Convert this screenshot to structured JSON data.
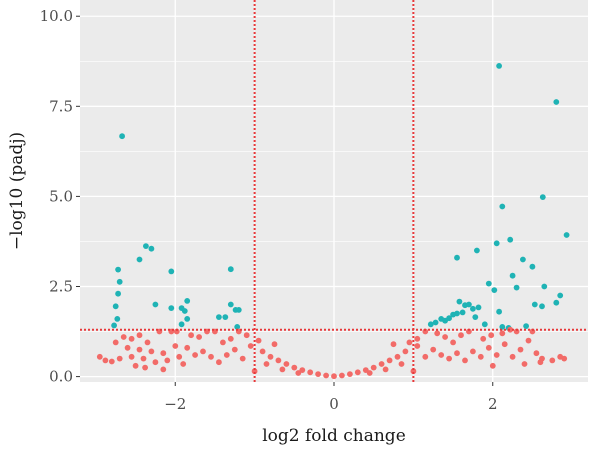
{
  "chart_data": {
    "type": "scatter",
    "title": "",
    "xlabel": "log2 fold change",
    "ylabel": "−log10 (padj)",
    "xlim": [
      -3.2,
      3.2
    ],
    "ylim": [
      -0.15,
      10.45
    ],
    "x_ticks": [
      -2,
      0,
      2
    ],
    "x_tick_labels": [
      "−2",
      "0",
      "2"
    ],
    "y_ticks": [
      0,
      2.5,
      5,
      7.5,
      10
    ],
    "y_tick_labels": [
      "0.0",
      "2.5",
      "5.0",
      "7.5",
      "10.0"
    ],
    "grid": true,
    "legend": "none",
    "background_color": "#ebebeb",
    "grid_color": "#ffffff",
    "threshold_color": "#e8383a",
    "thresholds": {
      "vlines": [
        -1,
        1
      ],
      "hline": 1.3
    },
    "series": [
      {
        "color": "#1fb3b5",
        "points": [
          [
            -2.67,
            6.67
          ],
          [
            -2.37,
            3.62
          ],
          [
            -2.3,
            3.55
          ],
          [
            -2.45,
            3.25
          ],
          [
            -2.72,
            2.97
          ],
          [
            -2.05,
            2.92
          ],
          [
            -1.3,
            2.98
          ],
          [
            -2.7,
            2.63
          ],
          [
            -2.72,
            2.3
          ],
          [
            -1.85,
            2.1
          ],
          [
            -1.3,
            2.0
          ],
          [
            -2.25,
            2.0
          ],
          [
            -2.05,
            1.9
          ],
          [
            -1.92,
            1.9
          ],
          [
            -1.24,
            1.85
          ],
          [
            -1.2,
            1.85
          ],
          [
            -1.88,
            1.82
          ],
          [
            -2.75,
            1.95
          ],
          [
            -2.73,
            1.6
          ],
          [
            -2.77,
            1.42
          ],
          [
            -1.45,
            1.65
          ],
          [
            -1.37,
            1.65
          ],
          [
            -1.85,
            1.6
          ],
          [
            -1.92,
            1.45
          ],
          [
            -1.22,
            1.38
          ],
          [
            2.08,
            8.62
          ],
          [
            2.8,
            7.62
          ],
          [
            2.63,
            4.98
          ],
          [
            2.12,
            4.72
          ],
          [
            2.93,
            3.93
          ],
          [
            2.22,
            3.8
          ],
          [
            2.05,
            3.7
          ],
          [
            1.8,
            3.5
          ],
          [
            1.55,
            3.3
          ],
          [
            2.38,
            3.25
          ],
          [
            2.5,
            3.05
          ],
          [
            2.25,
            2.8
          ],
          [
            1.95,
            2.58
          ],
          [
            2.65,
            2.5
          ],
          [
            2.3,
            2.47
          ],
          [
            2.02,
            2.4
          ],
          [
            2.85,
            2.25
          ],
          [
            2.8,
            2.05
          ],
          [
            2.53,
            2.0
          ],
          [
            1.65,
            1.98
          ],
          [
            1.58,
            2.08
          ],
          [
            1.7,
            2.0
          ],
          [
            2.62,
            1.95
          ],
          [
            1.82,
            1.92
          ],
          [
            1.75,
            1.88
          ],
          [
            2.08,
            1.8
          ],
          [
            1.62,
            1.78
          ],
          [
            1.55,
            1.75
          ],
          [
            1.5,
            1.72
          ],
          [
            1.78,
            1.65
          ],
          [
            1.45,
            1.62
          ],
          [
            1.35,
            1.6
          ],
          [
            1.4,
            1.55
          ],
          [
            1.28,
            1.5
          ],
          [
            1.22,
            1.45
          ],
          [
            1.9,
            1.45
          ],
          [
            2.12,
            1.38
          ],
          [
            2.2,
            1.35
          ],
          [
            2.42,
            1.4
          ]
        ]
      },
      {
        "color": "#f26b68",
        "points": [
          [
            -2.95,
            0.55
          ],
          [
            -2.88,
            0.45
          ],
          [
            -2.8,
            0.42
          ],
          [
            -2.7,
            0.5
          ],
          [
            -2.6,
            0.8
          ],
          [
            -2.55,
            0.55
          ],
          [
            -2.45,
            0.75
          ],
          [
            -2.4,
            0.5
          ],
          [
            -2.3,
            0.7
          ],
          [
            -2.25,
            0.4
          ],
          [
            -2.15,
            0.65
          ],
          [
            -2.1,
            0.45
          ],
          [
            -2.0,
            0.85
          ],
          [
            -1.95,
            0.55
          ],
          [
            -1.9,
            0.35
          ],
          [
            -2.65,
            1.1
          ],
          [
            -2.55,
            1.05
          ],
          [
            -2.45,
            1.15
          ],
          [
            -2.35,
            0.95
          ],
          [
            -2.2,
            1.25
          ],
          [
            -2.05,
            1.25
          ],
          [
            -1.98,
            1.25
          ],
          [
            -1.8,
            1.15
          ],
          [
            -1.7,
            1.1
          ],
          [
            -1.6,
            1.25
          ],
          [
            -1.5,
            1.25
          ],
          [
            -1.4,
            0.95
          ],
          [
            -1.3,
            1.05
          ],
          [
            -1.2,
            1.25
          ],
          [
            -1.1,
            1.15
          ],
          [
            -2.75,
            0.95
          ],
          [
            -2.5,
            0.3
          ],
          [
            -2.38,
            0.25
          ],
          [
            -2.15,
            0.2
          ],
          [
            -1.85,
            0.8
          ],
          [
            -1.75,
            0.6
          ],
          [
            -1.65,
            0.7
          ],
          [
            -1.55,
            0.55
          ],
          [
            -1.45,
            0.4
          ],
          [
            -1.35,
            0.6
          ],
          [
            -1.25,
            0.75
          ],
          [
            -1.15,
            0.5
          ],
          [
            -1.05,
            0.85
          ],
          [
            -0.95,
            1.0
          ],
          [
            -0.9,
            0.7
          ],
          [
            -0.8,
            0.55
          ],
          [
            -0.7,
            0.45
          ],
          [
            -0.6,
            0.35
          ],
          [
            -0.5,
            0.25
          ],
          [
            -0.4,
            0.18
          ],
          [
            -0.3,
            0.12
          ],
          [
            -0.2,
            0.07
          ],
          [
            -0.1,
            0.03
          ],
          [
            0.0,
            0.01
          ],
          [
            0.1,
            0.03
          ],
          [
            0.2,
            0.07
          ],
          [
            0.3,
            0.12
          ],
          [
            0.4,
            0.18
          ],
          [
            0.5,
            0.25
          ],
          [
            0.6,
            0.35
          ],
          [
            0.7,
            0.45
          ],
          [
            0.8,
            0.55
          ],
          [
            0.9,
            0.7
          ],
          [
            0.95,
            0.95
          ],
          [
            1.05,
            0.85
          ],
          [
            1.15,
            0.55
          ],
          [
            1.25,
            0.75
          ],
          [
            1.35,
            0.6
          ],
          [
            1.45,
            0.5
          ],
          [
            1.55,
            0.65
          ],
          [
            1.65,
            0.45
          ],
          [
            1.75,
            0.7
          ],
          [
            1.85,
            0.55
          ],
          [
            1.95,
            0.8
          ],
          [
            2.05,
            0.6
          ],
          [
            2.15,
            0.9
          ],
          [
            2.25,
            0.55
          ],
          [
            2.35,
            0.75
          ],
          [
            2.45,
            1.0
          ],
          [
            2.55,
            0.65
          ],
          [
            2.62,
            0.5
          ],
          [
            2.75,
            0.45
          ],
          [
            2.85,
            0.55
          ],
          [
            2.9,
            0.5
          ],
          [
            2.22,
            1.3
          ],
          [
            2.3,
            1.25
          ],
          [
            2.12,
            1.2
          ],
          [
            1.98,
            1.15
          ],
          [
            1.88,
            1.05
          ],
          [
            1.7,
            1.25
          ],
          [
            1.6,
            1.15
          ],
          [
            1.5,
            0.95
          ],
          [
            1.4,
            1.1
          ],
          [
            1.3,
            1.2
          ],
          [
            1.15,
            1.25
          ],
          [
            1.05,
            1.05
          ],
          [
            2.5,
            1.25
          ],
          [
            2.4,
            0.35
          ],
          [
            2.6,
            0.4
          ],
          [
            2.0,
            0.3
          ],
          [
            -0.85,
            0.35
          ],
          [
            -0.65,
            0.2
          ],
          [
            -0.45,
            0.1
          ],
          [
            0.45,
            0.1
          ],
          [
            0.65,
            0.2
          ],
          [
            0.85,
            0.35
          ],
          [
            -1.0,
            0.15
          ],
          [
            1.0,
            0.15
          ],
          [
            -0.75,
            0.9
          ],
          [
            0.75,
            0.9
          ]
        ]
      }
    ]
  }
}
